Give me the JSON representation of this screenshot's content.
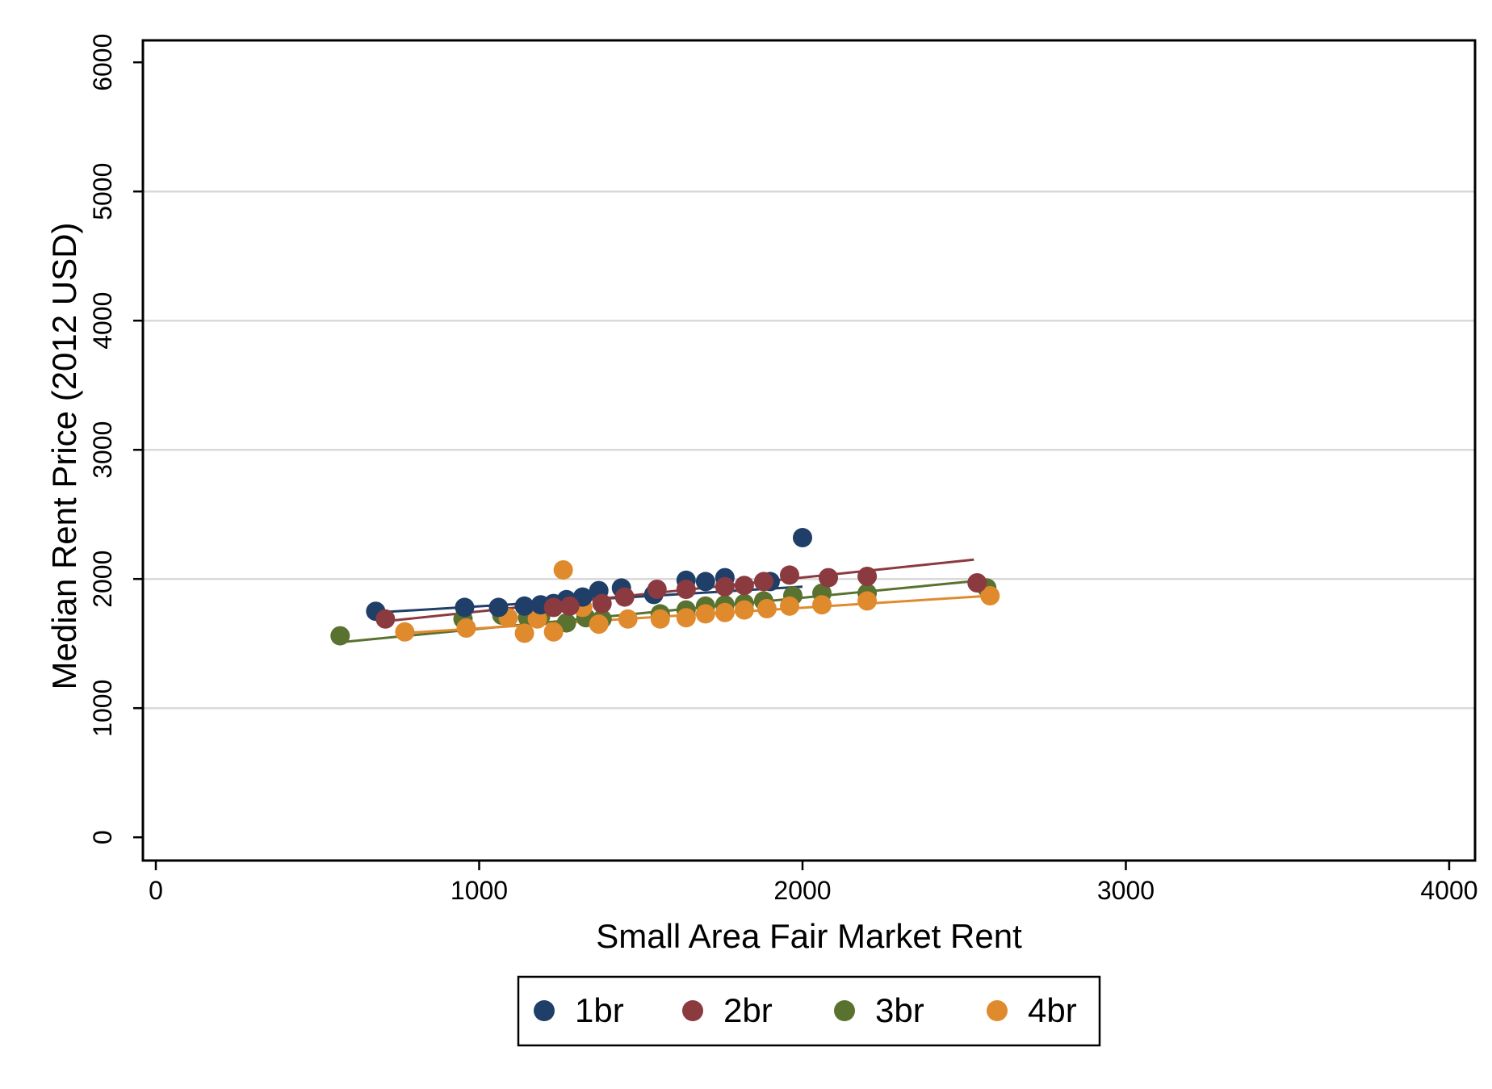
{
  "chart_data": {
    "type": "scatter",
    "title": "",
    "xlabel": "Small Area Fair Market Rent",
    "ylabel": "Median Rent Price (2012 USD)",
    "xlim": [
      -40,
      4080
    ],
    "ylim": [
      -180,
      6170
    ],
    "xticks": [
      0,
      1000,
      2000,
      3000,
      4000
    ],
    "yticks": [
      0,
      1000,
      2000,
      3000,
      4000,
      5000,
      6000
    ],
    "grid": "horizontal",
    "legend_position": "bottom",
    "series": [
      {
        "name": "1br",
        "color": "#1f3f68",
        "points": [
          [
            680,
            1750
          ],
          [
            955,
            1780
          ],
          [
            1060,
            1780
          ],
          [
            1140,
            1790
          ],
          [
            1190,
            1800
          ],
          [
            1230,
            1810
          ],
          [
            1270,
            1840
          ],
          [
            1320,
            1860
          ],
          [
            1370,
            1910
          ],
          [
            1440,
            1930
          ],
          [
            1540,
            1880
          ],
          [
            1640,
            1990
          ],
          [
            1700,
            1980
          ],
          [
            1760,
            2010
          ],
          [
            1900,
            1980
          ],
          [
            2000,
            2320
          ]
        ],
        "fit": [
          [
            680,
            1740
          ],
          [
            2000,
            1940
          ]
        ]
      },
      {
        "name": "2br",
        "color": "#8b3a3f",
        "points": [
          [
            710,
            1690
          ],
          [
            1230,
            1780
          ],
          [
            1280,
            1790
          ],
          [
            1380,
            1810
          ],
          [
            1450,
            1860
          ],
          [
            1550,
            1920
          ],
          [
            1640,
            1920
          ],
          [
            1760,
            1940
          ],
          [
            1820,
            1950
          ],
          [
            1880,
            1980
          ],
          [
            1960,
            2030
          ],
          [
            2080,
            2010
          ],
          [
            2200,
            2020
          ],
          [
            2540,
            1970
          ]
        ],
        "fit": [
          [
            700,
            1670
          ],
          [
            2530,
            2150
          ]
        ]
      },
      {
        "name": "3br",
        "color": "#5a7230",
        "points": [
          [
            570,
            1560
          ],
          [
            950,
            1690
          ],
          [
            1070,
            1720
          ],
          [
            1150,
            1700
          ],
          [
            1190,
            1710
          ],
          [
            1270,
            1660
          ],
          [
            1330,
            1700
          ],
          [
            1380,
            1690
          ],
          [
            1560,
            1730
          ],
          [
            1640,
            1760
          ],
          [
            1700,
            1790
          ],
          [
            1760,
            1800
          ],
          [
            1820,
            1810
          ],
          [
            1880,
            1830
          ],
          [
            1970,
            1870
          ],
          [
            2060,
            1890
          ],
          [
            2200,
            1890
          ],
          [
            2570,
            1930
          ]
        ],
        "fit": [
          [
            570,
            1510
          ],
          [
            2560,
            1990
          ]
        ]
      },
      {
        "name": "4br",
        "color": "#e08a2e",
        "points": [
          [
            770,
            1590
          ],
          [
            960,
            1620
          ],
          [
            1090,
            1700
          ],
          [
            1140,
            1580
          ],
          [
            1180,
            1690
          ],
          [
            1230,
            1590
          ],
          [
            1260,
            2070
          ],
          [
            1320,
            1780
          ],
          [
            1370,
            1650
          ],
          [
            1460,
            1690
          ],
          [
            1560,
            1690
          ],
          [
            1640,
            1700
          ],
          [
            1700,
            1730
          ],
          [
            1760,
            1740
          ],
          [
            1820,
            1760
          ],
          [
            1890,
            1770
          ],
          [
            1960,
            1790
          ],
          [
            2060,
            1800
          ],
          [
            2200,
            1830
          ],
          [
            2580,
            1870
          ]
        ],
        "fit": [
          [
            760,
            1580
          ],
          [
            2580,
            1870
          ]
        ]
      }
    ]
  }
}
